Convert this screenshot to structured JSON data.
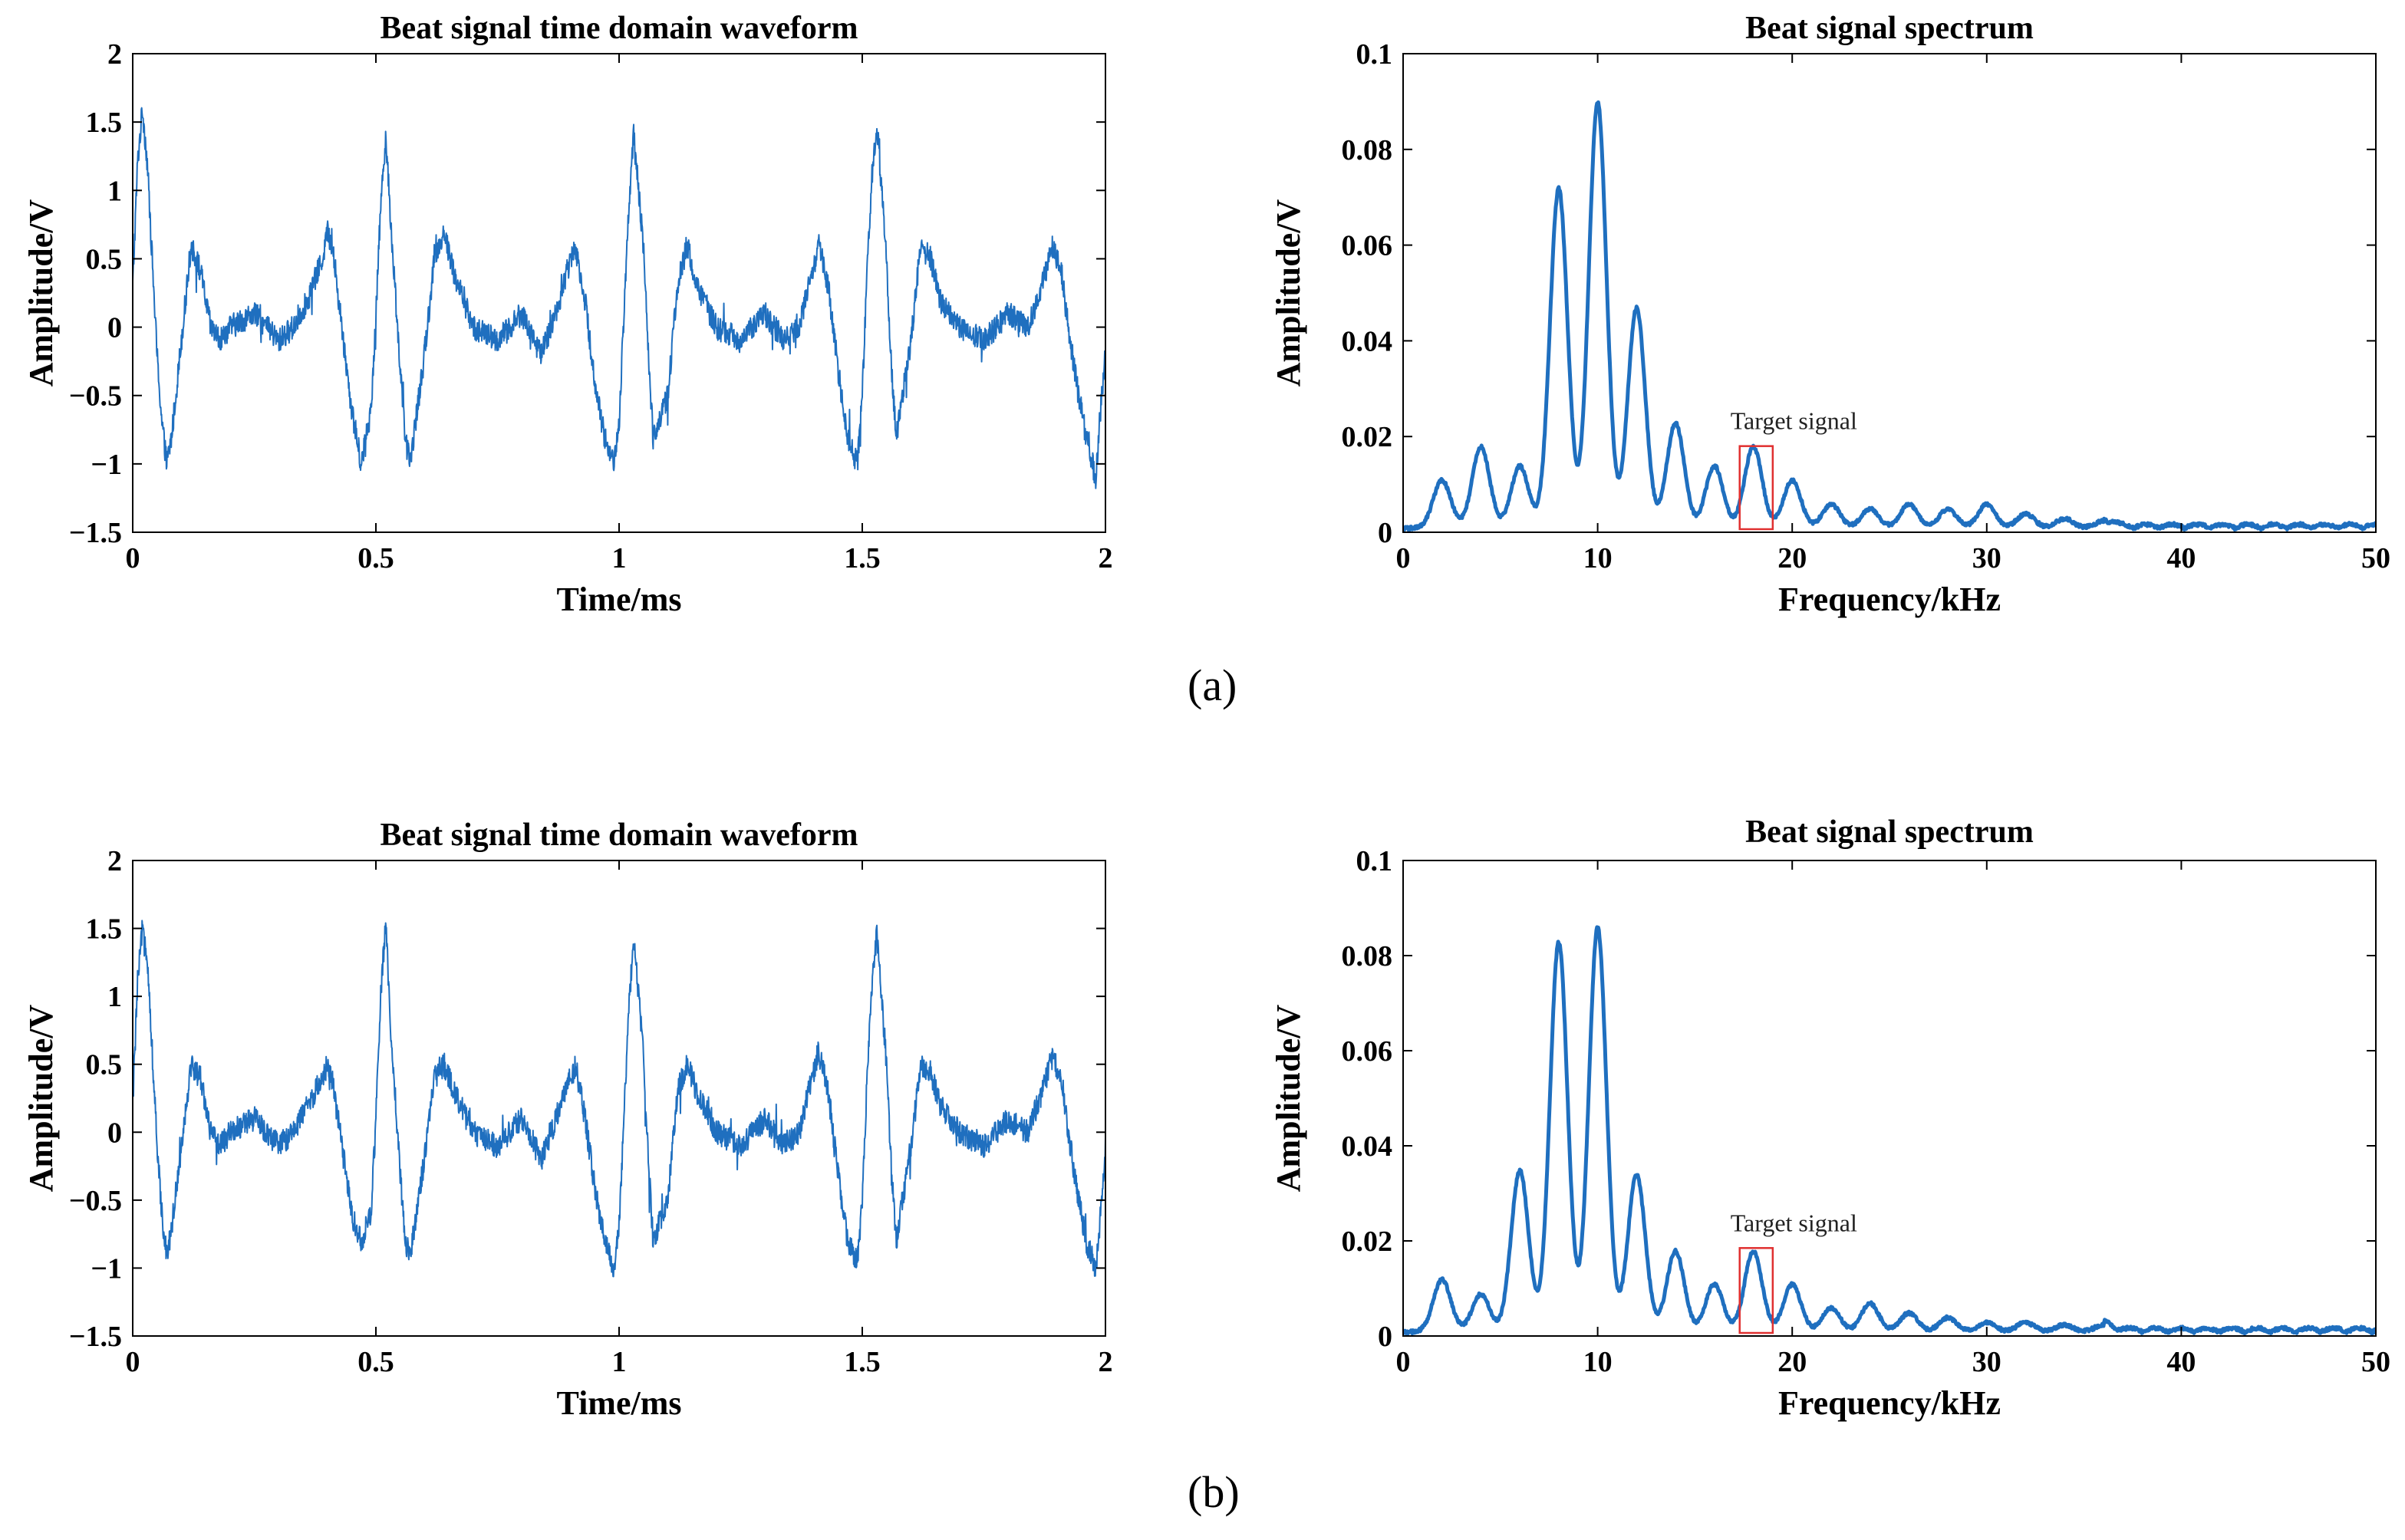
{
  "panels": [
    {
      "label": "(a)"
    },
    {
      "label": "(b)"
    }
  ],
  "colors": {
    "series": "#1f6fbf",
    "annotation_box": "#e03030",
    "axis": "#000000"
  },
  "chart_data": [
    {
      "id": "a-time",
      "type": "line",
      "title": "Beat signal time domain waveform",
      "xlabel": "Time/ms",
      "ylabel": "Amplitude/V",
      "xlim": [
        0,
        2
      ],
      "ylim": [
        -1.5,
        2
      ],
      "xticks": [
        0,
        0.5,
        1,
        1.5,
        2
      ],
      "xtick_labels": [
        "0",
        "0.5",
        "1",
        "1.5",
        "2"
      ],
      "yticks": [
        -1.5,
        -1,
        -0.5,
        0,
        0.5,
        1,
        1.5,
        2
      ],
      "ytick_labels": [
        "−1.5",
        "−1",
        "−0.5",
        "0",
        "0.5",
        "1",
        "1.5",
        "2"
      ],
      "grid": false,
      "series": [
        {
          "name": "beat signal",
          "line_width": 2,
          "x": [
            0,
            0.01,
            0.02,
            0.03,
            0.04,
            0.05,
            0.06,
            0.07,
            0.08,
            0.1,
            0.12,
            0.14,
            0.16,
            0.18,
            0.2,
            0.25,
            0.3,
            0.33,
            0.36,
            0.39,
            0.4,
            0.41,
            0.43,
            0.45,
            0.47,
            0.49,
            0.5,
            0.51,
            0.52,
            0.53,
            0.55,
            0.56,
            0.57,
            0.6,
            0.62,
            0.64,
            0.66,
            0.7,
            0.75,
            0.8,
            0.84,
            0.87,
            0.9,
            0.91,
            0.93,
            0.95,
            0.97,
            0.99,
            1.0,
            1.01,
            1.02,
            1.03,
            1.05,
            1.06,
            1.07,
            1.1,
            1.12,
            1.14,
            1.16,
            1.2,
            1.25,
            1.3,
            1.34,
            1.37,
            1.39,
            1.41,
            1.43,
            1.45,
            1.47,
            1.49,
            1.5,
            1.51,
            1.52,
            1.53,
            1.55,
            1.56,
            1.57,
            1.6,
            1.62,
            1.64,
            1.66,
            1.7,
            1.75,
            1.8,
            1.84,
            1.87,
            1.89,
            1.91,
            1.92,
            1.94,
            1.96,
            1.98,
            1.99,
            2.0
          ],
          "y": [
            0.3,
            1.2,
            1.6,
            1.2,
            0.5,
            -0.2,
            -0.7,
            -1.0,
            -0.8,
            -0.1,
            0.6,
            0.4,
            0.0,
            -0.1,
            0.0,
            0.1,
            -0.1,
            0.0,
            0.2,
            0.5,
            0.7,
            0.6,
            0.0,
            -0.6,
            -1.0,
            -0.6,
            0.1,
            0.9,
            1.4,
            0.8,
            -0.3,
            -0.8,
            -1.0,
            -0.2,
            0.5,
            0.7,
            0.4,
            0.0,
            -0.1,
            0.1,
            -0.2,
            0.1,
            0.5,
            0.6,
            0.2,
            -0.4,
            -0.8,
            -1.0,
            -0.7,
            0.1,
            0.9,
            1.4,
            0.6,
            -0.2,
            -0.8,
            -0.5,
            0.3,
            0.6,
            0.3,
            0.0,
            -0.1,
            0.1,
            -0.1,
            0.0,
            0.3,
            0.6,
            0.3,
            -0.3,
            -0.8,
            -1.0,
            -0.5,
            0.4,
            1.1,
            1.5,
            0.5,
            -0.3,
            -0.8,
            -0.1,
            0.6,
            0.5,
            0.2,
            0.0,
            -0.1,
            0.1,
            0.0,
            0.3,
            0.6,
            0.4,
            0.1,
            -0.4,
            -0.8,
            -1.1,
            -0.6,
            -0.2
          ],
          "noise": 0.09
        }
      ]
    },
    {
      "id": "a-spectrum",
      "type": "line",
      "title": "Beat signal spectrum",
      "xlabel": "Frequency/kHz",
      "ylabel": "Amplitude/V",
      "xlim": [
        0,
        50
      ],
      "ylim": [
        0,
        0.1
      ],
      "xticks": [
        0,
        10,
        20,
        30,
        40,
        50
      ],
      "xtick_labels": [
        "0",
        "10",
        "20",
        "30",
        "40",
        "50"
      ],
      "yticks": [
        0,
        0.02,
        0.04,
        0.06,
        0.08,
        0.1
      ],
      "ytick_labels": [
        "0",
        "0.02",
        "0.04",
        "0.06",
        "0.08",
        "0.1"
      ],
      "grid": false,
      "series": [
        {
          "name": "spectrum",
          "line_width": 5,
          "peaks_khz": [
            2,
            4,
            6,
            8,
            10,
            12,
            14,
            16,
            18,
            20,
            22,
            24,
            26,
            28,
            30,
            32,
            34,
            36
          ],
          "peaks_v": [
            0.01,
            0.017,
            0.013,
            0.071,
            0.089,
            0.046,
            0.022,
            0.013,
            0.017,
            0.01,
            0.005,
            0.004,
            0.005,
            0.004,
            0.005,
            0.003,
            0.002,
            0.0015
          ],
          "peak_width_khz": 0.45,
          "noise_floor_v": 0.0012
        }
      ],
      "annotation": {
        "text": "Target signal",
        "x_range_khz": [
          17.3,
          19.0
        ],
        "y_range_v": [
          0.0,
          0.018
        ]
      }
    },
    {
      "id": "b-time",
      "type": "line",
      "title": "Beat signal time domain waveform",
      "xlabel": "Time/ms",
      "ylabel": "Amplitude/V",
      "xlim": [
        0,
        2
      ],
      "ylim": [
        -1.5,
        2
      ],
      "xticks": [
        0,
        0.5,
        1,
        1.5,
        2
      ],
      "xtick_labels": [
        "0",
        "0.5",
        "1",
        "1.5",
        "2"
      ],
      "yticks": [
        -1.5,
        -1,
        -0.5,
        0,
        0.5,
        1,
        1.5,
        2
      ],
      "ytick_labels": [
        "−1.5",
        "−1",
        "−0.5",
        "0",
        "0.5",
        "1",
        "1.5",
        "2"
      ],
      "grid": false,
      "series": [
        {
          "name": "beat signal",
          "line_width": 2,
          "x": [
            0,
            0.01,
            0.02,
            0.03,
            0.04,
            0.05,
            0.06,
            0.07,
            0.08,
            0.1,
            0.12,
            0.14,
            0.16,
            0.18,
            0.2,
            0.25,
            0.3,
            0.33,
            0.36,
            0.39,
            0.4,
            0.41,
            0.43,
            0.45,
            0.47,
            0.49,
            0.5,
            0.51,
            0.52,
            0.53,
            0.55,
            0.56,
            0.57,
            0.6,
            0.62,
            0.64,
            0.66,
            0.7,
            0.75,
            0.8,
            0.84,
            0.87,
            0.9,
            0.91,
            0.93,
            0.95,
            0.97,
            0.99,
            1.0,
            1.01,
            1.02,
            1.03,
            1.05,
            1.06,
            1.07,
            1.1,
            1.12,
            1.14,
            1.16,
            1.2,
            1.25,
            1.3,
            1.34,
            1.37,
            1.39,
            1.41,
            1.43,
            1.45,
            1.47,
            1.49,
            1.5,
            1.51,
            1.52,
            1.53,
            1.55,
            1.56,
            1.57,
            1.6,
            1.62,
            1.64,
            1.66,
            1.7,
            1.75,
            1.8,
            1.84,
            1.87,
            1.89,
            1.91,
            1.92,
            1.94,
            1.96,
            1.98,
            1.99,
            2.0
          ],
          "y": [
            0.2,
            1.1,
            1.5,
            1.3,
            0.6,
            -0.1,
            -0.6,
            -0.9,
            -0.7,
            -0.1,
            0.5,
            0.4,
            0.0,
            -0.1,
            0.0,
            0.1,
            -0.1,
            0.0,
            0.2,
            0.4,
            0.5,
            0.4,
            -0.1,
            -0.6,
            -0.8,
            -0.6,
            0.1,
            1.0,
            1.55,
            0.8,
            -0.3,
            -0.8,
            -0.9,
            -0.2,
            0.4,
            0.5,
            0.3,
            0.0,
            -0.1,
            0.1,
            -0.2,
            0.1,
            0.4,
            0.5,
            0.1,
            -0.4,
            -0.8,
            -1.0,
            -0.7,
            0.1,
            0.9,
            1.45,
            0.6,
            -0.2,
            -0.8,
            -0.5,
            0.3,
            0.5,
            0.3,
            0.0,
            -0.1,
            0.1,
            -0.1,
            0.0,
            0.3,
            0.6,
            0.3,
            -0.3,
            -0.8,
            -0.95,
            -0.5,
            0.4,
            1.1,
            1.45,
            0.5,
            -0.3,
            -0.8,
            -0.1,
            0.5,
            0.45,
            0.2,
            0.0,
            -0.1,
            0.1,
            0.0,
            0.3,
            0.55,
            0.4,
            0.1,
            -0.4,
            -0.8,
            -1.0,
            -0.6,
            -0.1
          ],
          "noise": 0.09
        }
      ]
    },
    {
      "id": "b-spectrum",
      "type": "line",
      "title": "Beat signal spectrum",
      "xlabel": "Frequency/kHz",
      "ylabel": "Amplitude/V",
      "xlim": [
        0,
        50
      ],
      "ylim": [
        0,
        0.1
      ],
      "xticks": [
        0,
        10,
        20,
        30,
        40,
        50
      ],
      "xtick_labels": [
        "0",
        "10",
        "20",
        "30",
        "40",
        "50"
      ],
      "yticks": [
        0,
        0.02,
        0.04,
        0.06,
        0.08,
        0.1
      ],
      "ytick_labels": [
        "0",
        "0.02",
        "0.04",
        "0.06",
        "0.08",
        "0.1"
      ],
      "grid": false,
      "series": [
        {
          "name": "spectrum",
          "line_width": 5,
          "peaks_khz": [
            2,
            4,
            6,
            8,
            10,
            12,
            14,
            16,
            18,
            20,
            22,
            24,
            26,
            28,
            30,
            32,
            34,
            36
          ],
          "peaks_v": [
            0.011,
            0.008,
            0.034,
            0.082,
            0.085,
            0.033,
            0.017,
            0.01,
            0.017,
            0.01,
            0.005,
            0.006,
            0.004,
            0.003,
            0.002,
            0.002,
            0.0015,
            0.0015
          ],
          "peak_width_khz": 0.45,
          "noise_floor_v": 0.0012
        }
      ],
      "annotation": {
        "text": "Target signal",
        "x_range_khz": [
          17.3,
          19.0
        ],
        "y_range_v": [
          0.0,
          0.0185
        ]
      }
    }
  ]
}
